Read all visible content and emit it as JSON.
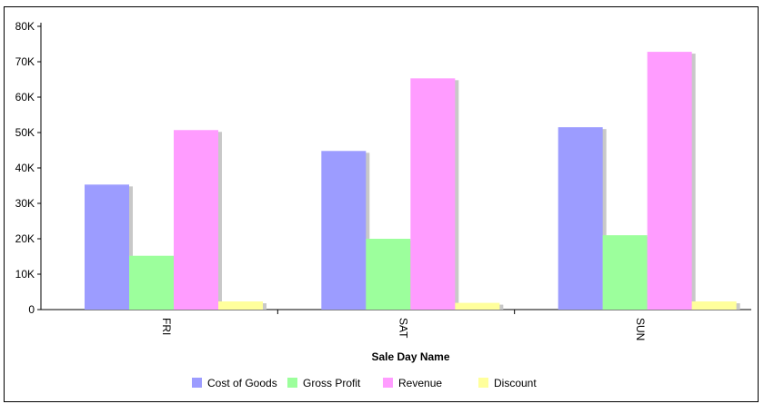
{
  "chart_data": {
    "type": "bar",
    "categories": [
      "FRI",
      "SAT",
      "SUN"
    ],
    "series": [
      {
        "name": "Cost of Goods",
        "color": "#9c9cff",
        "values": [
          35300,
          44800,
          51500
        ]
      },
      {
        "name": "Gross Profit",
        "color": "#9cff9c",
        "values": [
          15200,
          20000,
          21000
        ]
      },
      {
        "name": "Revenue",
        "color": "#ff9cff",
        "values": [
          50700,
          65300,
          72800
        ]
      },
      {
        "name": "Discount",
        "color": "#ffff9c",
        "values": [
          2300,
          1900,
          2300
        ]
      }
    ],
    "xlabel": "Sale Day Name",
    "ylabel": "",
    "ylim": [
      0,
      80000
    ],
    "y_ticks": [
      {
        "value": 0,
        "label": "0"
      },
      {
        "value": 10000,
        "label": "10K"
      },
      {
        "value": 20000,
        "label": "20K"
      },
      {
        "value": 30000,
        "label": "30K"
      },
      {
        "value": 40000,
        "label": "40K"
      },
      {
        "value": 50000,
        "label": "50K"
      },
      {
        "value": 60000,
        "label": "60K"
      },
      {
        "value": 70000,
        "label": "70K"
      },
      {
        "value": 80000,
        "label": "80K"
      }
    ],
    "grid": false,
    "legend_position": "bottom"
  }
}
